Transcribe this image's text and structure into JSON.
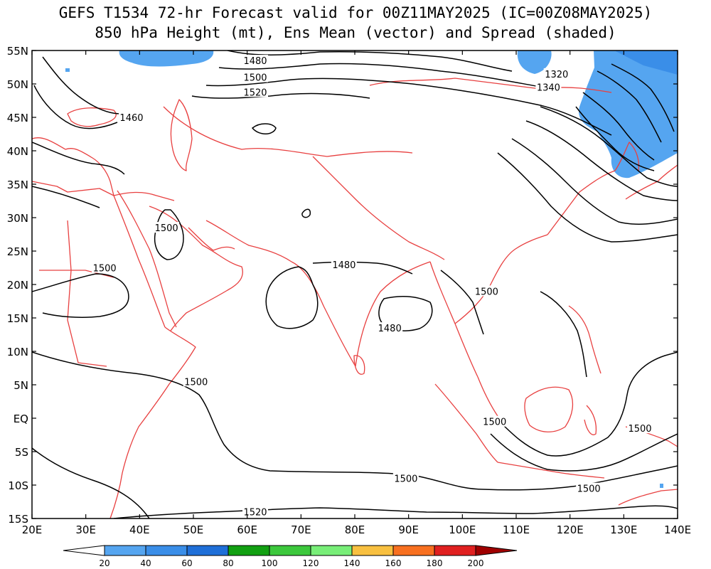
{
  "title_line1": "GEFS T1534 72-hr Forecast valid for 00Z11MAY2025 (IC=00Z08MAY2025)",
  "title_line2": "850 hPa Height (mt), Ens Mean (vector) and Spread (shaded)",
  "map": {
    "lon_ticks": [
      "20E",
      "30E",
      "40E",
      "50E",
      "60E",
      "70E",
      "80E",
      "90E",
      "100E",
      "110E",
      "120E",
      "130E",
      "140E"
    ],
    "lat_ticks": [
      "55N",
      "50N",
      "45N",
      "40N",
      "35N",
      "30N",
      "25N",
      "20N",
      "15N",
      "10N",
      "5N",
      "EQ",
      "5S",
      "10S",
      "15S"
    ],
    "contour_labels": [
      {
        "text": "1480",
        "lon": 61.5,
        "lat": 53.5
      },
      {
        "text": "1500",
        "lon": 61.5,
        "lat": 51.0
      },
      {
        "text": "1520",
        "lon": 61.5,
        "lat": 48.8
      },
      {
        "text": "1460",
        "lon": 38.5,
        "lat": 45.0
      },
      {
        "text": "1320",
        "lon": 117.5,
        "lat": 51.5
      },
      {
        "text": "1340",
        "lon": 116.0,
        "lat": 49.5
      },
      {
        "text": "1500",
        "lon": 45.0,
        "lat": 28.5
      },
      {
        "text": "1500",
        "lon": 33.5,
        "lat": 22.5
      },
      {
        "text": "1480",
        "lon": 78.0,
        "lat": 23.0
      },
      {
        "text": "1500",
        "lon": 104.5,
        "lat": 19.0
      },
      {
        "text": "1480",
        "lon": 86.5,
        "lat": 13.5
      },
      {
        "text": "1500",
        "lon": 50.5,
        "lat": 5.5
      },
      {
        "text": "1500",
        "lon": 106.0,
        "lat": -0.5
      },
      {
        "text": "1500",
        "lon": 133.0,
        "lat": -1.5
      },
      {
        "text": "1500",
        "lon": 89.5,
        "lat": -9.0
      },
      {
        "text": "1500",
        "lon": 123.5,
        "lat": -10.5
      },
      {
        "text": "1520",
        "lon": 61.5,
        "lat": -14.0
      }
    ],
    "colors": {
      "coast": "#e84040",
      "contour": "#000000",
      "frame": "#000000"
    }
  },
  "colorbar": {
    "labels": [
      "20",
      "40",
      "60",
      "80",
      "100",
      "120",
      "140",
      "160",
      "180",
      "200"
    ],
    "colors": [
      "#55a5f0",
      "#3a8ee8",
      "#1f6fd8",
      "#12a012",
      "#3cc83c",
      "#78ee78",
      "#f8c040",
      "#f87020",
      "#e02020",
      "#a00000"
    ],
    "under_color": "#ffffff",
    "over_color": "#a00000"
  }
}
